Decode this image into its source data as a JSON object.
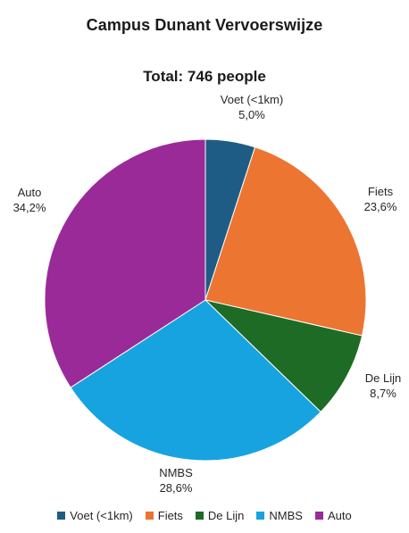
{
  "chart_data": {
    "type": "pie",
    "title": "Campus Dunant  Vervoerswijze",
    "subtitle": "Total: 746 people",
    "start_angle_deg": 0,
    "direction": "clockwise",
    "slices": [
      {
        "name": "Voet (<1km)",
        "value": 5.0,
        "value_label": "5,0%",
        "color": "#1f5c85"
      },
      {
        "name": "Fiets",
        "value": 23.6,
        "value_label": "23,6%",
        "color": "#ec7531"
      },
      {
        "name": "De Lijn",
        "value": 8.7,
        "value_label": "8,7%",
        "color": "#1d6b24"
      },
      {
        "name": "NMBS",
        "value": 28.6,
        "value_label": "28,6%",
        "color": "#17a3df"
      },
      {
        "name": "Auto",
        "value": 34.2,
        "value_label": "34,2%",
        "color": "#9b2a99"
      }
    ],
    "legend_position": "bottom"
  }
}
